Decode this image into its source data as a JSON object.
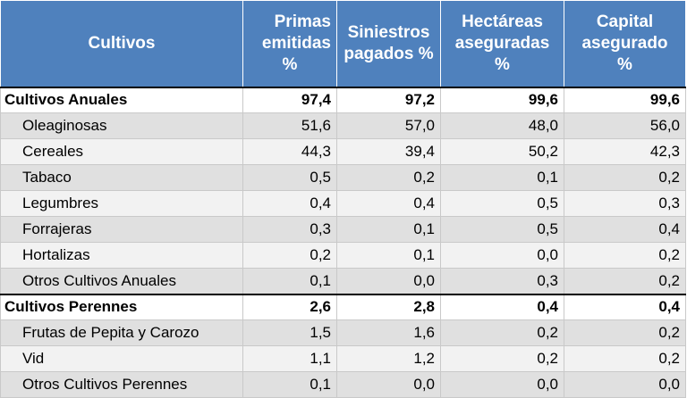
{
  "headers": {
    "cultivos": "Cultivos",
    "primas": [
      "Primas",
      "emitidas",
      "%"
    ],
    "siniestros": [
      "Siniestros",
      "pagados %"
    ],
    "hectareas": [
      "Hectáreas",
      "aseguradas",
      "%"
    ],
    "capital": [
      "Capital",
      "asegurado",
      "%"
    ]
  },
  "annual": {
    "label": "Cultivos Anuales",
    "values": [
      "97,4",
      "97,2",
      "99,6",
      "99,6"
    ],
    "items": [
      {
        "label": "Oleaginosas",
        "values": [
          "51,6",
          "57,0",
          "48,0",
          "56,0"
        ]
      },
      {
        "label": "Cereales",
        "values": [
          "44,3",
          "39,4",
          "50,2",
          "42,3"
        ]
      },
      {
        "label": "Tabaco",
        "values": [
          "0,5",
          "0,2",
          "0,1",
          "0,2"
        ]
      },
      {
        "label": "Legumbres",
        "values": [
          "0,4",
          "0,4",
          "0,5",
          "0,3"
        ]
      },
      {
        "label": "Forrajeras",
        "values": [
          "0,3",
          "0,1",
          "0,5",
          "0,4"
        ]
      },
      {
        "label": "Hortalizas",
        "values": [
          "0,2",
          "0,1",
          "0,0",
          "0,2"
        ]
      },
      {
        "label": "Otros Cultivos Anuales",
        "values": [
          "0,1",
          "0,0",
          "0,3",
          "0,2"
        ]
      }
    ]
  },
  "perennial": {
    "label": "Cultivos Perennes",
    "values": [
      "2,6",
      "2,8",
      "0,4",
      "0,4"
    ],
    "items": [
      {
        "label": "Frutas de Pepita y Carozo",
        "values": [
          "1,5",
          "1,6",
          "0,2",
          "0,2"
        ]
      },
      {
        "label": "Vid",
        "values": [
          "1,1",
          "1,2",
          "0,2",
          "0,2"
        ]
      },
      {
        "label": "Otros Cultivos Perennes",
        "values": [
          "0,1",
          "0,0",
          "0,0",
          "0,0"
        ]
      }
    ]
  }
}
